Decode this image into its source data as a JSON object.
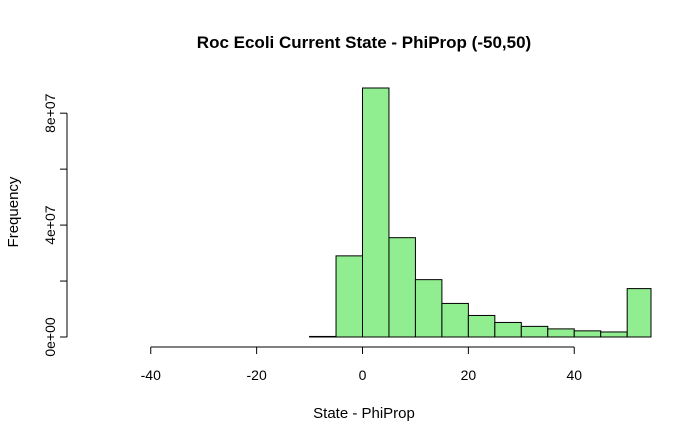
{
  "chart_data": {
    "type": "bar",
    "title": "Roc Ecoli Current State - PhiProp (-50,50)",
    "xlabel": "State - PhiProp",
    "ylabel": "Frequency",
    "bin_width": 5,
    "bins": [
      {
        "x0": -55,
        "x1": -50,
        "value": 0
      },
      {
        "x0": -50,
        "x1": -45,
        "value": 0
      },
      {
        "x0": -45,
        "x1": -40,
        "value": 0
      },
      {
        "x0": -40,
        "x1": -35,
        "value": 0
      },
      {
        "x0": -35,
        "x1": -30,
        "value": 0
      },
      {
        "x0": -30,
        "x1": -25,
        "value": 0
      },
      {
        "x0": -25,
        "x1": -20,
        "value": 0
      },
      {
        "x0": -20,
        "x1": -15,
        "value": 0
      },
      {
        "x0": -15,
        "x1": -10,
        "value": 0
      },
      {
        "x0": -10,
        "x1": -5,
        "value": 200000
      },
      {
        "x0": -5,
        "x1": 0,
        "value": 29000000
      },
      {
        "x0": 0,
        "x1": 5,
        "value": 89000000
      },
      {
        "x0": 5,
        "x1": 10,
        "value": 35500000
      },
      {
        "x0": 10,
        "x1": 15,
        "value": 20500000
      },
      {
        "x0": 15,
        "x1": 20,
        "value": 12000000
      },
      {
        "x0": 20,
        "x1": 25,
        "value": 7700000
      },
      {
        "x0": 25,
        "x1": 30,
        "value": 5200000
      },
      {
        "x0": 30,
        "x1": 35,
        "value": 3800000
      },
      {
        "x0": 35,
        "x1": 40,
        "value": 2900000
      },
      {
        "x0": 40,
        "x1": 45,
        "value": 2200000
      },
      {
        "x0": 45,
        "x1": 50,
        "value": 1800000
      },
      {
        "x0": 50,
        "x1": 55,
        "value": 17300000
      }
    ],
    "xlim": [
      -54.5,
      54.5
    ],
    "ylim": [
      0,
      89000000
    ],
    "x_ticks": [
      -40,
      -20,
      0,
      20,
      40
    ],
    "x_tick_labels": [
      "-40",
      "-20",
      "0",
      "20",
      "40"
    ],
    "y_ticks": [
      0,
      20000000,
      40000000,
      60000000,
      80000000
    ],
    "y_tick_labels": [
      "0e+00",
      "",
      "4e+07",
      "",
      "8e+07"
    ],
    "bar_color": "#90ee90",
    "border_color": "#000000",
    "grid": false,
    "legend": "none"
  }
}
